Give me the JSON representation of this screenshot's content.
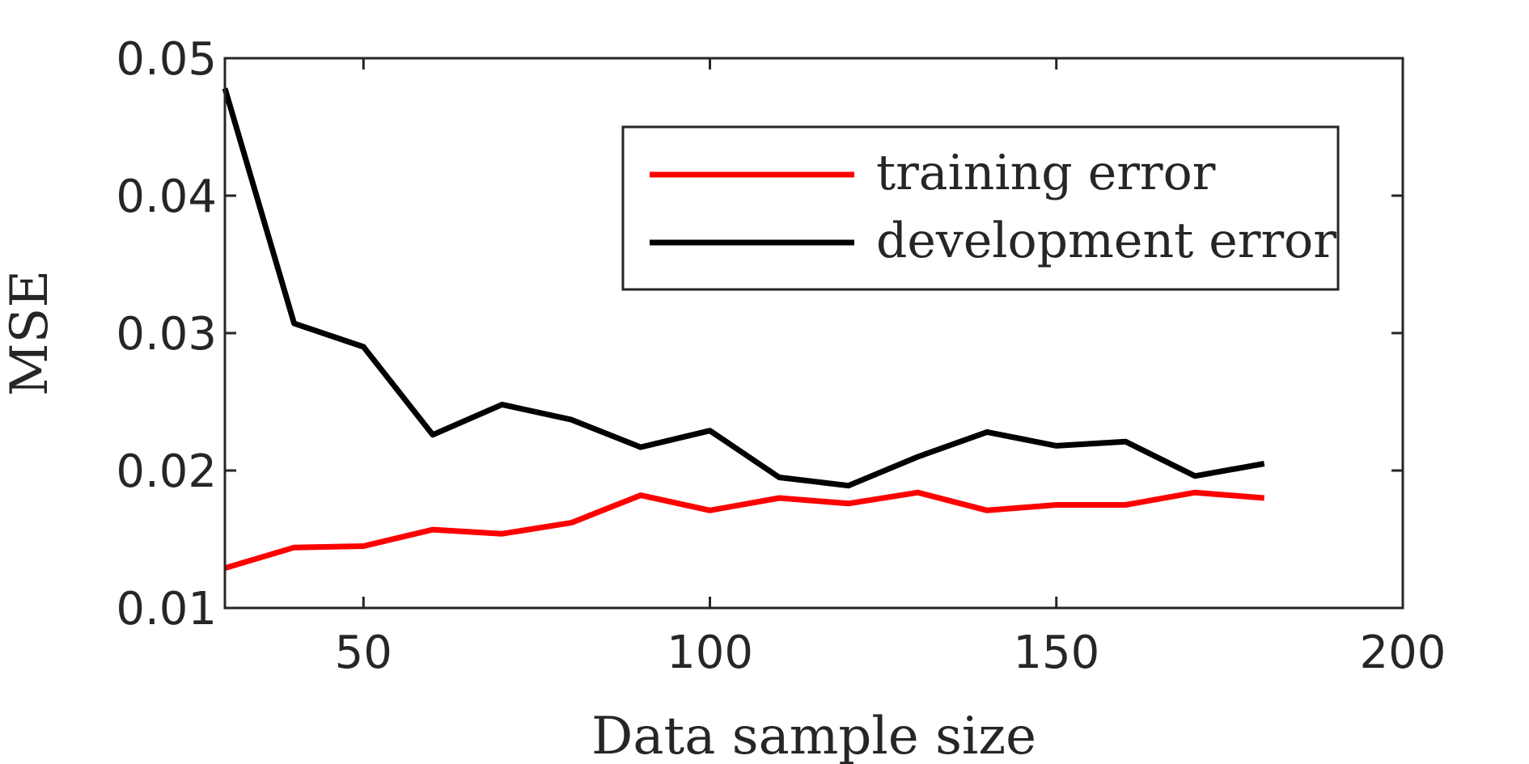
{
  "chart_data": {
    "type": "line",
    "title": "",
    "xlabel": "Data sample size",
    "ylabel": "MSE",
    "xlim": [
      30,
      200
    ],
    "ylim": [
      0.01,
      0.05
    ],
    "xticks": [
      50,
      100,
      150,
      200
    ],
    "xtick_labels": [
      "50",
      "100",
      "150",
      "200"
    ],
    "yticks": [
      0.01,
      0.02,
      0.03,
      0.04,
      0.05
    ],
    "ytick_labels": [
      "0.01",
      "0.02",
      "0.03",
      "0.04",
      "0.05"
    ],
    "grid": false,
    "legend_position": "top-right",
    "x": [
      30,
      40,
      50,
      60,
      70,
      80,
      90,
      100,
      110,
      120,
      130,
      140,
      150,
      160,
      170,
      180
    ],
    "series": [
      {
        "name": "training error",
        "color": "#ff0000",
        "values": [
          0.0129,
          0.0144,
          0.0145,
          0.0157,
          0.0154,
          0.0162,
          0.0182,
          0.0171,
          0.018,
          0.0176,
          0.0184,
          0.0171,
          0.0175,
          0.0175,
          0.0184,
          0.018
        ]
      },
      {
        "name": "development error",
        "color": "#000000",
        "values": [
          0.0478,
          0.0307,
          0.029,
          0.0226,
          0.0248,
          0.0237,
          0.0217,
          0.0229,
          0.0195,
          0.0189,
          0.021,
          0.0228,
          0.0218,
          0.0221,
          0.0196,
          0.0205
        ]
      }
    ]
  }
}
